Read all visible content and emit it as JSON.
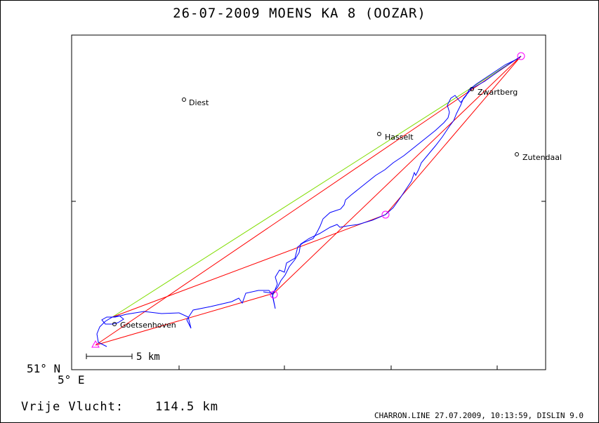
{
  "title": "26-07-2009   MOENS   KA 8 (OOZAR)",
  "axis": {
    "lat_label": "51° N",
    "lon_label": "5° E"
  },
  "places": [
    {
      "name": "Diest"
    },
    {
      "name": "Hasselt"
    },
    {
      "name": "Zwartberg"
    },
    {
      "name": "Zutendaal"
    },
    {
      "name": "Goetsenhoven"
    }
  ],
  "scale": {
    "label": "5 km"
  },
  "flight": {
    "label": "Vrije Vlucht:",
    "distance": "114.5 km"
  },
  "footer": "CHARRON.LINE 27.07.2009, 10:13:59, DISLIN 9.0",
  "colors": {
    "track": "#0000ff",
    "legs": "#ff0000",
    "open_line": "#80dd00",
    "turnpoint": "#ff00ff"
  }
}
